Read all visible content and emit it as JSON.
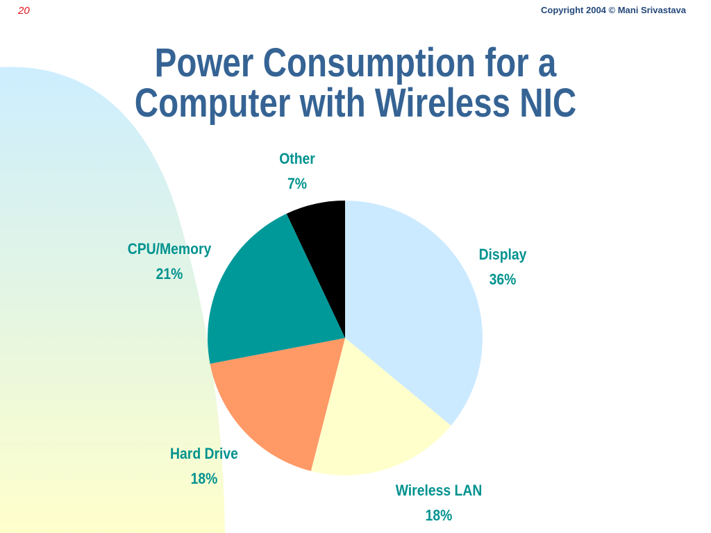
{
  "slide": {
    "number": "20",
    "copyright": "Copyright 2004 © Mani Srivastava",
    "title_line1": "Power Consumption for a",
    "title_line2": "Computer with Wireless NIC"
  },
  "chart_data": {
    "type": "pie",
    "title": "Power Consumption for a Computer with Wireless NIC",
    "start": "12 o'clock",
    "direction": "clockwise",
    "slices": [
      {
        "label": "Display",
        "value": 36,
        "display": "36%",
        "color": "#cceaff"
      },
      {
        "label": "Wireless LAN",
        "value": 18,
        "display": "18%",
        "color": "#ffffcc"
      },
      {
        "label": "Hard Drive",
        "value": 18,
        "display": "18%",
        "color": "#ff9966"
      },
      {
        "label": "CPU/Memory",
        "value": 21,
        "display": "21%",
        "color": "#009999"
      },
      {
        "label": "Other",
        "value": 7,
        "display": "7%",
        "color": "#000000"
      }
    ],
    "label_color": "#00928f"
  }
}
